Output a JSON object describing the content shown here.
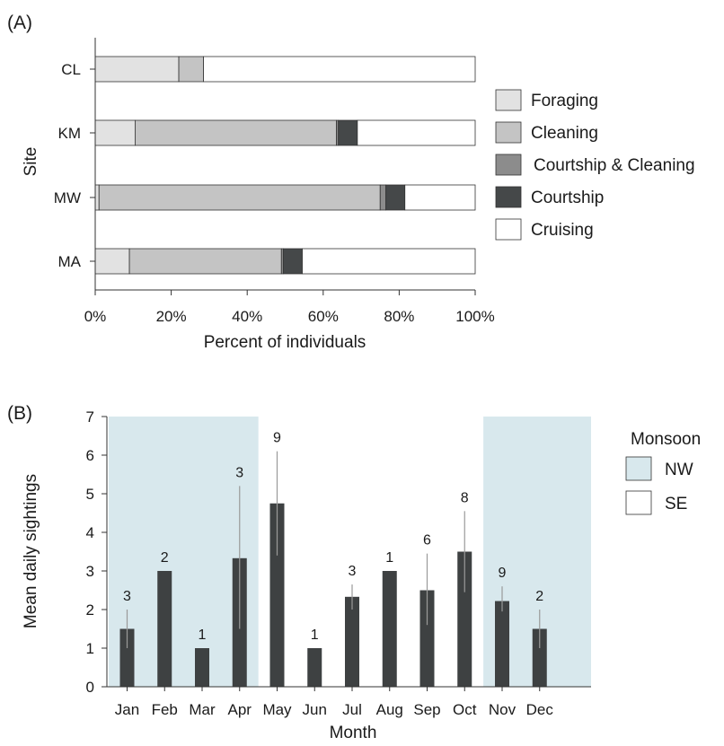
{
  "panels": {
    "a": {
      "tag": "(A)",
      "ylabel": "Site",
      "xlabel": "Percent of individuals",
      "legend": [
        "Foraging",
        "Cleaning",
        "Courtship & Cleaning",
        "Courtship",
        "Cruising"
      ]
    },
    "b": {
      "tag": "(B)",
      "ylabel": "Mean daily sightings",
      "xlabel": "Month",
      "legend_title": "Monsoon",
      "legend": [
        "NW",
        "SE"
      ]
    }
  },
  "colors": {
    "foraging": "#e2e2e2",
    "cleaning": "#c4c4c4",
    "courtship_cleaning": "#8c8c8c",
    "courtship": "#454849",
    "cruising": "#ffffff",
    "nw_monsoon": "#d8e8ed",
    "se_monsoon": "#ffffff",
    "bar": "#3e4142",
    "error_bar": "#9a9a9a"
  },
  "chart_data": [
    {
      "type": "bar",
      "orientation": "horizontal",
      "stacked": true,
      "title": "(A)",
      "xlabel": "Percent of individuals",
      "ylabel": "Site",
      "xlim": [
        0,
        100
      ],
      "x_ticks": [
        "0%",
        "20%",
        "40%",
        "60%",
        "80%",
        "100%"
      ],
      "categories": [
        "CL",
        "KM",
        "MW",
        "MA"
      ],
      "series": [
        {
          "name": "Foraging",
          "values": [
            22,
            10.5,
            1,
            9
          ]
        },
        {
          "name": "Cleaning",
          "values": [
            6.5,
            53,
            74,
            40
          ]
        },
        {
          "name": "Courtship & Cleaning",
          "values": [
            0,
            0.5,
            1.5,
            0.5
          ]
        },
        {
          "name": "Courtship",
          "values": [
            0,
            5,
            5,
            5
          ]
        },
        {
          "name": "Cruising",
          "values": [
            71.5,
            31,
            18.5,
            45.5
          ]
        }
      ],
      "legend_position": "right",
      "grid": false
    },
    {
      "type": "bar",
      "title": "(B)",
      "xlabel": "Month",
      "ylabel": "Mean daily sightings",
      "ylim": [
        0,
        7
      ],
      "y_ticks": [
        "0",
        "1",
        "2",
        "3",
        "4",
        "5",
        "6",
        "7"
      ],
      "categories": [
        "Jan",
        "Feb",
        "Mar",
        "Apr",
        "May",
        "Jun",
        "Jul",
        "Aug",
        "Sep",
        "Oct",
        "Nov",
        "Dec"
      ],
      "values": [
        1.5,
        3.0,
        1.0,
        3.33,
        4.75,
        1.0,
        2.33,
        3.0,
        2.5,
        3.5,
        2.22,
        1.5
      ],
      "error_low": [
        1.0,
        null,
        null,
        1.5,
        3.4,
        null,
        2.0,
        null,
        1.6,
        2.45,
        1.95,
        1.0
      ],
      "error_high": [
        2.0,
        null,
        null,
        5.2,
        6.1,
        null,
        2.65,
        null,
        3.45,
        4.55,
        2.6,
        2.0
      ],
      "n_labels": [
        "3",
        "2",
        "1",
        "3",
        "9",
        "1",
        "3",
        "1",
        "6",
        "8",
        "9",
        "2"
      ],
      "monsoon": [
        "NW",
        "NW",
        "NW",
        "NW",
        "SE",
        "SE",
        "SE",
        "SE",
        "SE",
        "SE",
        "NW",
        "NW"
      ],
      "legend_title": "Monsoon",
      "legend_position": "right",
      "grid": false
    }
  ]
}
